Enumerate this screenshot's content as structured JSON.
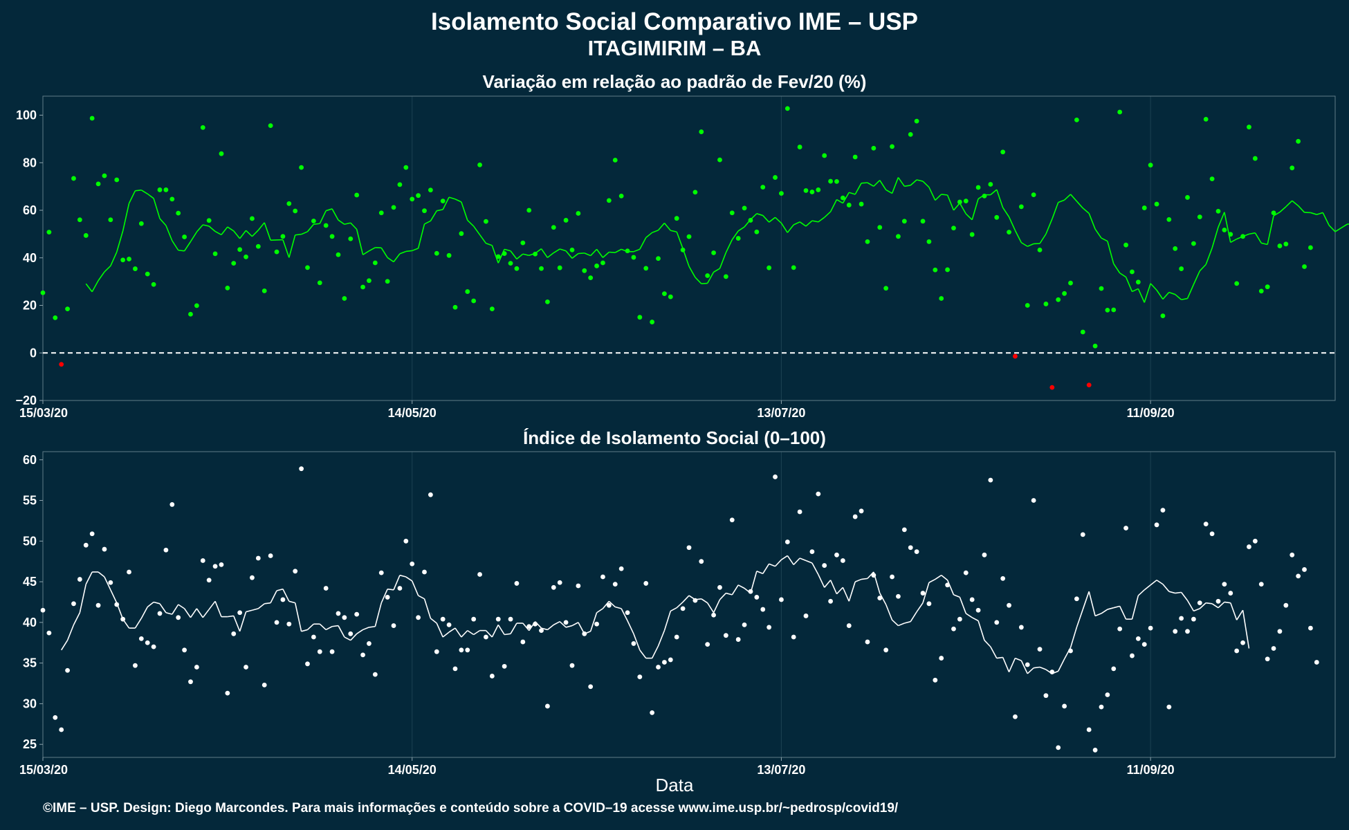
{
  "title": "Isolamento Social Comparativo IME – USP",
  "subtitle": "ITAGIMIRIM – BA",
  "x_axis_label": "Data",
  "caption": "©IME – USP. Design: Diego Marcondes. Para mais informações e conteúdo sobre a COVID–19 acesse www.ime.usp.br/~pedrosp/covid19/",
  "colors": {
    "background": "#04283a",
    "positive_points": "#00ff00",
    "negative_points": "#ff0000",
    "index_points": "#ffffff",
    "zero_line": "#ffffff"
  },
  "chart_data": [
    {
      "type": "scatter",
      "title": "Variação em relação ao padrão de Fev/20 (%)",
      "x_ticks": [
        "15/03/20",
        "14/05/20",
        "13/07/20",
        "11/09/20"
      ],
      "y_ticks": [
        "−20",
        "0",
        "20",
        "40",
        "60",
        "80",
        "100"
      ],
      "xlim": [
        "2020-03-15",
        "2020-10-11"
      ],
      "ylim": [
        -20,
        108
      ],
      "reference_line": 0,
      "series": [
        {
          "kind": "daily_points",
          "start_date": "2020-03-15",
          "values": [
            25.3,
            50.8,
            14.8,
            -4.8,
            18.5,
            73.4,
            56.0,
            49.4,
            98.7,
            71.1,
            74.5,
            56.0,
            72.8,
            39.1,
            39.5,
            35.4,
            54.4,
            33.2,
            28.8,
            68.6,
            68.6,
            64.7,
            58.8,
            48.8,
            16.3,
            19.9,
            94.8,
            55.7,
            41.7,
            83.8,
            27.3,
            37.7,
            43.5,
            40.4,
            56.5,
            44.8,
            26.1,
            95.6,
            42.5,
            49.0,
            62.8,
            59.7,
            78.0,
            35.9,
            55.5,
            29.5,
            53.6,
            49.0,
            41.3,
            22.9,
            48.0,
            66.4,
            27.7,
            30.4,
            37.9,
            58.9,
            30.1,
            61.2,
            70.8,
            78.0,
            64.7,
            66.2,
            59.8,
            68.5,
            41.9,
            63.9,
            41.0,
            19.2,
            50.2,
            25.8,
            21.9,
            79.1,
            55.3,
            18.5,
            40.5,
            41.8,
            37.7,
            35.5,
            46.3,
            60.0,
            41.6,
            35.5,
            21.5,
            52.8,
            35.8,
            55.8,
            43.3,
            58.7,
            34.6,
            31.6,
            36.6,
            37.9,
            64.1,
            81.1,
            66.0,
            42.9,
            40.2,
            15.0,
            35.6,
            13.0,
            39.7,
            24.9,
            23.6,
            56.6,
            43.3,
            48.9,
            67.6,
            93.0,
            32.5,
            42.1,
            81.2,
            32.1,
            58.9,
            48.2,
            60.9,
            55.8,
            50.9,
            69.7,
            35.8,
            73.8,
            67.1,
            102.8,
            35.9,
            86.6,
            68.3,
            67.7,
            68.6,
            83.0,
            72.2,
            72.1,
            65.2,
            62.2,
            82.4,
            62.6,
            46.8,
            86.1,
            52.8,
            27.2,
            86.8,
            49.0,
            55.4,
            91.9,
            97.5,
            55.4,
            46.8,
            34.9,
            22.9,
            35.0,
            52.5,
            63.5,
            63.9,
            49.8,
            69.6,
            66.0,
            70.9,
            57.0,
            84.5,
            50.8,
            -1.4,
            61.5,
            20.0,
            66.5,
            43.3,
            20.6,
            -14.5,
            22.4,
            25.0,
            29.4,
            98.0,
            8.8,
            -13.5,
            2.9,
            27.1,
            18.0,
            18.1,
            101.3,
            45.4,
            34.1,
            29.8,
            61.0,
            79.0,
            62.6,
            15.6,
            56.1,
            43.9,
            35.4,
            65.4,
            46.0,
            57.2,
            98.3,
            73.2,
            59.6,
            51.7,
            49.9,
            29.2,
            49.0,
            95.0,
            81.8,
            26.0,
            27.8,
            58.9,
            45.0,
            45.8,
            77.8,
            89.0,
            36.3,
            44.3
          ]
        },
        {
          "kind": "moving_average",
          "start_date": "2020-03-15",
          "values": [
            null,
            null,
            null,
            null,
            null,
            null,
            null,
            29.1,
            25.7,
            30.4,
            34.1,
            36.6,
            42.4,
            51.3,
            62.9,
            68.2,
            68.5,
            66.9,
            65.0,
            56.5,
            53.6,
            47.2,
            43.2,
            42.9,
            46.8,
            50.9,
            53.9,
            53.3,
            51.1,
            49.7,
            53.0,
            51.3,
            48.1,
            51.5,
            49.0,
            51.6,
            54.8,
            47.4,
            47.5,
            47.6,
            40.1,
            49.6,
            49.9,
            51.0,
            54.1,
            54.4,
            59.8,
            60.6,
            55.9,
            54.1,
            54.7,
            52.0,
            41.3,
            42.9,
            44.3,
            44.2,
            40.1,
            38.3,
            41.7,
            42.7,
            43.0,
            44.0,
            54.2,
            55.5,
            59.8,
            60.3,
            65.5,
            64.7,
            63.5,
            55.8,
            53.3,
            49.7,
            46.1,
            45.2,
            37.8,
            43.6,
            42.9,
            39.5,
            41.6,
            41.0,
            41.9,
            43.8,
            40.1,
            42.1,
            43.7,
            42.9,
            39.8,
            41.8,
            42.0,
            40.9,
            43.6,
            40.1,
            42.4,
            42.2,
            43.6,
            42.6,
            42.6,
            43.6,
            48.5,
            50.6,
            51.6,
            54.6,
            51.5,
            50.9,
            43.9,
            36.4,
            31.8,
            29.1,
            29.3,
            34.0,
            35.5,
            42.2,
            47.6,
            51.3,
            53.0,
            56.1,
            58.6,
            57.8,
            55.0,
            57.0,
            54.6,
            50.6,
            53.9,
            55.1,
            53.3,
            55.6,
            55.1,
            57.0,
            59.4,
            64.5,
            63.0,
            67.5,
            66.7,
            71.4,
            71.6,
            70.1,
            72.6,
            68.6,
            67.1,
            73.8,
            70.1,
            70.5,
            72.8,
            72.2,
            69.7,
            64.2,
            66.7,
            66.4,
            60.0,
            63.0,
            58.5,
            56.0,
            64.8,
            66.5,
            66.5,
            68.7,
            61.1,
            57.2,
            51.5,
            46.4,
            44.8,
            45.9,
            46.0,
            50.0,
            56.3,
            63.3,
            64.3,
            66.7,
            63.8,
            60.9,
            58.7,
            52.1,
            48.3,
            47.0,
            37.5,
            33.6,
            31.9,
            25.8,
            27.0,
            21.2,
            29.2,
            26.4,
            22.6,
            25.5,
            24.6,
            22.4,
            22.9,
            28.8,
            34.5,
            37.2,
            44.1,
            52.9,
            59.2,
            46.5,
            47.9,
            49.0,
            50.0,
            50.5,
            46.2,
            45.6,
            57.7,
            59.2,
            61.5,
            64.0,
            61.9,
            59.1,
            59.0,
            58.2,
            59.0,
            53.7,
            51.0,
            52.6,
            54.2,
            54.0,
            51.8,
            53.0,
            56.3
          ]
        }
      ]
    },
    {
      "type": "scatter",
      "title": "Índice de Isolamento Social (0–100)",
      "x_ticks": [
        "15/03/20",
        "14/05/20",
        "13/07/20",
        "11/09/20"
      ],
      "y_ticks": [
        "25",
        "30",
        "35",
        "40",
        "45",
        "50",
        "55",
        "60"
      ],
      "xlim": [
        "2020-03-15",
        "2020-10-11"
      ],
      "ylim": [
        23.4,
        61.0
      ],
      "series": [
        {
          "kind": "daily_points",
          "start_date": "2020-03-15",
          "values": [
            41.5,
            38.7,
            28.3,
            26.8,
            34.1,
            42.3,
            45.3,
            49.5,
            50.9,
            42.1,
            49.0,
            44.9,
            42.2,
            40.4,
            46.2,
            34.7,
            38.0,
            37.5,
            37.0,
            41.1,
            48.9,
            54.5,
            40.6,
            36.6,
            32.7,
            34.5,
            47.6,
            45.2,
            46.9,
            47.1,
            31.3,
            38.6,
            41.2,
            34.5,
            45.5,
            47.9,
            32.3,
            48.2,
            40.0,
            42.8,
            39.8,
            46.3,
            58.9,
            34.9,
            38.2,
            36.4,
            44.2,
            36.4,
            41.1,
            40.6,
            38.6,
            41.0,
            36.0,
            37.4,
            33.6,
            46.1,
            43.1,
            39.6,
            44.2,
            50.0,
            47.2,
            40.6,
            46.2,
            55.7,
            36.4,
            40.4,
            39.7,
            34.3,
            36.6,
            36.6,
            40.4,
            45.9,
            38.2,
            33.4,
            40.4,
            34.6,
            40.4,
            44.8,
            37.6,
            39.5,
            39.8,
            39.0,
            29.7,
            44.3,
            44.9,
            40.0,
            34.7,
            44.5,
            38.6,
            32.1,
            39.8,
            45.6,
            42.1,
            44.7,
            46.6,
            41.2,
            37.4,
            33.3,
            44.8,
            28.9,
            34.5,
            35.1,
            35.4,
            38.2,
            41.7,
            49.2,
            42.7,
            47.5,
            37.3,
            40.9,
            44.3,
            38.4,
            52.6,
            37.9,
            39.7,
            43.8,
            43.1,
            41.6,
            39.4,
            57.9,
            42.8,
            49.9,
            38.2,
            53.6,
            40.8,
            48.7,
            55.8,
            47.0,
            42.6,
            48.3,
            47.6,
            39.6,
            53.0,
            53.7,
            37.6,
            45.8,
            43.0,
            36.6,
            45.6,
            43.2,
            51.4,
            49.2,
            48.7,
            43.6,
            42.3,
            32.9,
            35.6,
            44.6,
            39.2,
            40.4,
            46.1,
            42.8,
            41.5,
            48.3,
            57.5,
            40.0,
            45.4,
            42.1,
            28.4,
            39.4,
            34.8,
            55.0,
            36.7,
            31.0,
            33.9,
            24.6,
            29.7,
            36.5,
            42.9,
            50.8,
            26.8,
            24.3,
            29.6,
            31.1,
            34.3,
            39.2,
            51.6,
            35.9,
            38.0,
            37.3,
            39.3,
            52.0,
            53.8,
            29.6,
            38.9,
            40.5,
            38.9,
            40.4,
            42.4,
            52.1,
            50.9,
            42.6,
            44.7,
            43.6,
            36.5,
            37.5,
            49.3,
            50.0,
            44.7,
            35.5,
            36.8,
            38.9,
            42.1,
            48.3,
            45.7,
            46.5,
            39.3,
            35.1
          ]
        },
        {
          "kind": "moving_average",
          "start_date": "2020-03-15",
          "values": [
            null,
            null,
            null,
            36.6,
            37.8,
            39.7,
            41.2,
            44.7,
            46.2,
            46.2,
            45.6,
            44.0,
            42.4,
            40.4,
            39.3,
            39.3,
            40.5,
            41.9,
            42.5,
            42.3,
            41.2,
            41.0,
            42.2,
            41.7,
            40.6,
            41.7,
            40.6,
            41.6,
            42.6,
            40.7,
            40.7,
            40.8,
            38.9,
            41.3,
            41.5,
            41.7,
            42.3,
            42.4,
            43.9,
            44.1,
            42.6,
            42.4,
            38.9,
            39.1,
            39.8,
            39.8,
            39.1,
            39.5,
            39.6,
            38.2,
            37.8,
            38.6,
            39.1,
            39.4,
            39.5,
            42.4,
            44.1,
            44.0,
            45.8,
            45.6,
            45.1,
            43.3,
            42.9,
            40.5,
            39.9,
            38.2,
            38.8,
            39.3,
            38.2,
            39.0,
            38.5,
            39.0,
            39.0,
            38.2,
            39.7,
            38.5,
            38.6,
            39.9,
            39.9,
            39.0,
            40.1,
            39.3,
            39.1,
            39.7,
            40.1,
            39.4,
            39.6,
            40.0,
            38.6,
            38.9,
            41.2,
            41.7,
            42.6,
            41.9,
            41.7,
            40.2,
            38.6,
            36.6,
            35.6,
            35.6,
            37.1,
            39.0,
            41.4,
            41.8,
            42.5,
            43.3,
            42.8,
            42.9,
            42.4,
            41.2,
            42.8,
            43.6,
            43.4,
            44.6,
            44.2,
            43.6,
            46.3,
            46.0,
            47.2,
            46.9,
            47.7,
            48.2,
            47.1,
            47.9,
            47.6,
            47.3,
            45.9,
            44.3,
            45.2,
            43.5,
            44.3,
            42.6,
            45.0,
            45.3,
            45.4,
            46.2,
            43.6,
            42.2,
            40.3,
            39.6,
            39.9,
            40.1,
            41.3,
            42.4,
            44.9,
            45.3,
            45.8,
            45.2,
            43.4,
            43.1,
            41.1,
            40.6,
            40.2,
            37.8,
            37.0,
            35.6,
            35.7,
            33.9,
            35.6,
            35.3,
            33.7,
            34.4,
            34.5,
            34.2,
            33.7,
            34.0,
            35.5,
            36.9,
            39.4,
            41.6,
            43.8,
            40.8,
            41.1,
            41.6,
            41.8,
            42.0,
            40.4,
            40.4,
            43.3,
            44.0,
            44.6,
            45.2,
            44.7,
            43.8,
            43.6,
            43.7,
            42.7,
            41.4,
            41.7,
            42.4,
            42.3,
            41.8,
            42.5,
            42.4,
            40.3,
            41.5,
            36.8
          ]
        }
      ]
    }
  ]
}
